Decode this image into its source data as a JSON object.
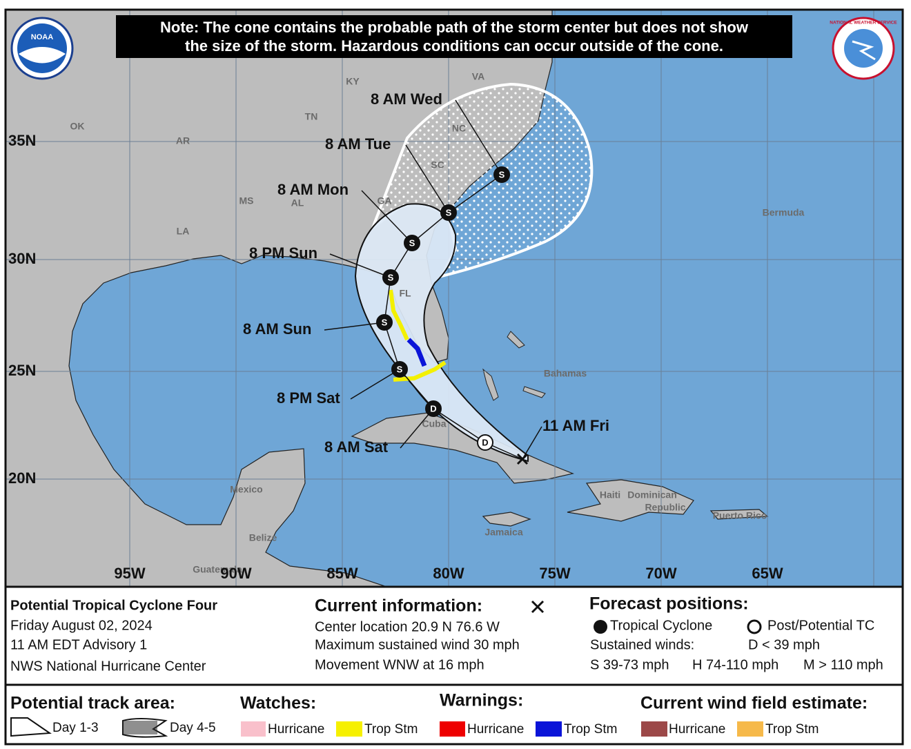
{
  "note": [
    "Note: The cone contains the probable path of the storm center but does not show",
    "the size of the storm. Hazardous conditions can occur outside of the cone."
  ],
  "logos": {
    "noaa": "NOAA",
    "nws": "NATIONAL WEATHER SERVICE"
  },
  "map": {
    "lat_labels": [
      "35N",
      "30N",
      "25N",
      "20N"
    ],
    "lon_labels": [
      "95W",
      "90W",
      "85W",
      "80W",
      "75W",
      "70W",
      "65W"
    ],
    "places": [
      "KY",
      "VA",
      "OK",
      "TN",
      "NC",
      "AR",
      "SC",
      "MS",
      "AL",
      "GA",
      "LA",
      "FL",
      "Bermuda",
      "Bahamas",
      "Cuba",
      "Mexico",
      "Haiti",
      "Dominican",
      "Republic",
      "Puerto Rico",
      "Jamaica",
      "Belize",
      "Guatemala"
    ],
    "forecast_labels": [
      "8 AM Wed",
      "8 AM Tue",
      "8 AM Mon",
      "8 PM Sun",
      "8 AM Sun",
      "8 PM Sat",
      "8 AM Sat",
      "11 AM Fri"
    ],
    "markers": [
      "S",
      "S",
      "S",
      "S",
      "S",
      "S",
      "D",
      "D"
    ]
  },
  "info": {
    "storm": [
      "Potential Tropical Cyclone Four",
      "Friday August 02, 2024",
      "11 AM EDT Advisory 1",
      "NWS National Hurricane Center"
    ],
    "current_title": "Current information:",
    "current": [
      "Center location 20.9 N 76.6 W",
      "Maximum sustained wind 30 mph",
      "Movement WNW at 16 mph"
    ],
    "forecast_title": "Forecast positions:",
    "tropical": "Tropical Cyclone",
    "post": "Post/Potential TC",
    "winds_title": "Sustained winds:",
    "winds": [
      "D < 39 mph",
      "S 39-73 mph",
      "H 74-110 mph",
      "M > 110 mph"
    ]
  },
  "legend": {
    "track_title": "Potential track area:",
    "day13": "Day 1-3",
    "day45": "Day 4-5",
    "watches_title": "Watches:",
    "watches": [
      "Hurricane",
      "Trop Stm"
    ],
    "warnings_title": "Warnings:",
    "warnings": [
      "Hurricane",
      "Trop Stm"
    ],
    "wind_title": "Current wind field estimate:",
    "wind": [
      "Hurricane",
      "Trop Stm"
    ]
  }
}
